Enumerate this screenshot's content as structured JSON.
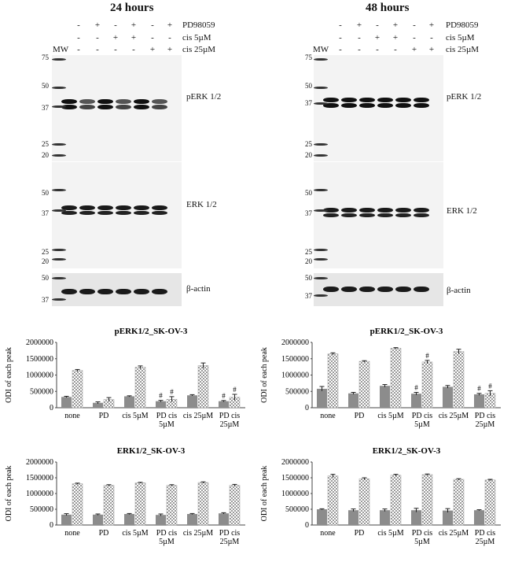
{
  "figure": {
    "panels": [
      {
        "title": "24 hours",
        "conditions": [
          "PD98059",
          "cis 5µM",
          "cis 25µM"
        ],
        "signs": [
          [
            "-",
            "+",
            "-",
            "+",
            "-",
            "+"
          ],
          [
            "-",
            "-",
            "+",
            "+",
            "-",
            "-"
          ],
          [
            "-",
            "-",
            "-",
            "-",
            "+",
            "+"
          ]
        ],
        "mw_label": "MW",
        "blots": [
          {
            "label": "pERK 1/2",
            "markers": [
              "75",
              "50",
              "37",
              "25",
              "20"
            ]
          },
          {
            "label": "ERK 1/2",
            "markers": [
              "50",
              "37",
              "25",
              "20"
            ]
          },
          {
            "label": "β-actin",
            "markers": [
              "50",
              "37"
            ]
          }
        ]
      },
      {
        "title": "48 hours",
        "conditions": [
          "PD98059",
          "cis 5µM",
          "cis 25µM"
        ],
        "signs": [
          [
            "-",
            "+",
            "-",
            "+",
            "-",
            "+"
          ],
          [
            "-",
            "-",
            "+",
            "+",
            "-",
            "-"
          ],
          [
            "-",
            "-",
            "-",
            "-",
            "+",
            "+"
          ]
        ],
        "mw_label": "MW",
        "blots": [
          {
            "label": "pERK 1/2",
            "markers": [
              "75",
              "50",
              "37",
              "25",
              "20"
            ]
          },
          {
            "label": "ERK 1/2",
            "markers": [
              "50",
              "37",
              "25",
              "20"
            ]
          },
          {
            "label": "β-actin",
            "markers": [
              "50",
              "37"
            ]
          }
        ]
      }
    ]
  },
  "chart_data": [
    {
      "type": "bar",
      "title": "pERK1/2_SK-OV-3",
      "ylabel": "ODI of each peak",
      "ylim": [
        0,
        2000000
      ],
      "yticks": [
        "0",
        "500000",
        "1000000",
        "1500000",
        "2000000"
      ],
      "categories": [
        "none",
        "PD",
        "cis 5µM",
        "PD cis 5µM",
        "cis 25µM",
        "PD cis 25µM"
      ],
      "series": [
        {
          "pattern": "solid",
          "color": "#8c8c8c",
          "values": [
            330000,
            150000,
            350000,
            200000,
            380000,
            200000
          ],
          "errors": [
            20000,
            30000,
            15000,
            25000,
            20000,
            20000
          ]
        },
        {
          "pattern": "checkered",
          "color": "#bdbdbd",
          "values": [
            1140000,
            250000,
            1240000,
            260000,
            1290000,
            320000
          ],
          "errors": [
            30000,
            60000,
            40000,
            80000,
            80000,
            90000
          ]
        }
      ],
      "annotations": [
        "",
        "",
        "",
        "#",
        "",
        "#"
      ]
    },
    {
      "type": "bar",
      "title": "pERK1/2_SK-OV-3",
      "ylabel": "ODI of each peak",
      "ylim": [
        0,
        2000000
      ],
      "yticks": [
        "0",
        "500000",
        "1000000",
        "1500000",
        "2000000"
      ],
      "categories": [
        "none",
        "PD",
        "cis 5µM",
        "PD cis 5µM",
        "cis 25µM",
        "PD cis 25µM"
      ],
      "series": [
        {
          "pattern": "solid",
          "color": "#8c8c8c",
          "values": [
            580000,
            440000,
            670000,
            430000,
            640000,
            410000
          ],
          "errors": [
            70000,
            30000,
            40000,
            40000,
            40000,
            30000
          ]
        },
        {
          "pattern": "checkered",
          "color": "#bdbdbd",
          "values": [
            1650000,
            1420000,
            1820000,
            1400000,
            1720000,
            440000
          ],
          "errors": [
            30000,
            20000,
            20000,
            50000,
            70000,
            80000
          ]
        }
      ],
      "annotations": [
        "",
        "",
        "",
        "#",
        "",
        "#"
      ]
    },
    {
      "type": "bar",
      "title": "ERK1/2_SK-OV-3",
      "ylabel": "ODI of each peak",
      "ylim": [
        0,
        2000000
      ],
      "yticks": [
        "0",
        "500000",
        "1000000",
        "1500000",
        "2000000"
      ],
      "categories": [
        "none",
        "PD",
        "cis 5µM",
        "PD cis 5µM",
        "cis 25µM",
        "PD cis 25µM"
      ],
      "series": [
        {
          "pattern": "solid",
          "color": "#8c8c8c",
          "values": [
            330000,
            330000,
            350000,
            320000,
            350000,
            370000
          ],
          "errors": [
            30000,
            20000,
            15000,
            30000,
            15000,
            20000
          ]
        },
        {
          "pattern": "checkered",
          "color": "#bdbdbd",
          "values": [
            1310000,
            1260000,
            1340000,
            1260000,
            1350000,
            1260000
          ],
          "errors": [
            20000,
            20000,
            15000,
            20000,
            20000,
            30000
          ]
        }
      ],
      "annotations": [
        "",
        "",
        "",
        "",
        "",
        ""
      ]
    },
    {
      "type": "bar",
      "title": "ERK1/2_SK-OV-3",
      "ylabel": "ODI of each peak",
      "ylim": [
        0,
        2000000
      ],
      "yticks": [
        "0",
        "500000",
        "1000000",
        "1500000",
        "2000000"
      ],
      "categories": [
        "none",
        "PD",
        "cis 5µM",
        "PD cis 5µM",
        "cis 25µM",
        "PD cis 25µM"
      ],
      "series": [
        {
          "pattern": "solid",
          "color": "#8c8c8c",
          "values": [
            500000,
            470000,
            470000,
            470000,
            460000,
            470000
          ],
          "errors": [
            15000,
            40000,
            40000,
            60000,
            60000,
            15000
          ]
        },
        {
          "pattern": "checkered",
          "color": "#bdbdbd",
          "values": [
            1560000,
            1470000,
            1580000,
            1600000,
            1450000,
            1430000
          ],
          "errors": [
            50000,
            30000,
            30000,
            20000,
            20000,
            20000
          ]
        }
      ],
      "annotations": [
        "",
        "",
        "",
        "",
        "",
        ""
      ]
    }
  ]
}
